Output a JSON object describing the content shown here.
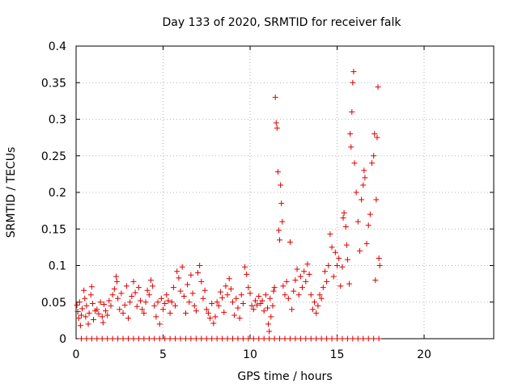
{
  "chart_data": {
    "type": "scatter",
    "title": "Day 133 of 2020, SRMTID for receiver falk",
    "xlabel": "GPS time / hours",
    "ylabel": "SRMTID / TECUs",
    "xlim": [
      0,
      24
    ],
    "ylim": [
      0,
      0.4
    ],
    "x_ticks": [
      0,
      5,
      10,
      15,
      20
    ],
    "x_tick_labels": [
      "0",
      "5",
      "10",
      "15",
      "20"
    ],
    "y_ticks": [
      0,
      0.05,
      0.1,
      0.15,
      0.2,
      0.25,
      0.3,
      0.35,
      0.4
    ],
    "y_tick_labels": [
      "0",
      "0.05",
      "0.1",
      "0.15",
      "0.2",
      "0.25",
      "0.3",
      "0.35",
      "0.4"
    ],
    "grid": true,
    "marker": "+",
    "marker_color": "#dd0000",
    "series": [
      {
        "points": [
          [
            0.05,
            0.046
          ],
          [
            0.1,
            0.037
          ],
          [
            0.15,
            0.028
          ],
          [
            0.2,
            0.05
          ],
          [
            0.25,
            0.018
          ],
          [
            0.3,
            0.032
          ],
          [
            0.35,
            0.041
          ],
          [
            0.45,
            0.066
          ],
          [
            0.5,
            0.055
          ],
          [
            0.55,
            0.03
          ],
          [
            0.6,
            0.045
          ],
          [
            0.7,
            0.02
          ],
          [
            0.75,
            0.035
          ],
          [
            0.85,
            0.06
          ],
          [
            0.9,
            0.071
          ],
          [
            0.95,
            0.048
          ],
          [
            1.0,
            0.026
          ],
          [
            1.1,
            0.038
          ],
          [
            1.2,
            0.04
          ],
          [
            1.3,
            0.034
          ],
          [
            1.4,
            0.05
          ],
          [
            1.5,
            0.03
          ],
          [
            1.55,
            0.022
          ],
          [
            1.6,
            0.047
          ],
          [
            1.7,
            0.038
          ],
          [
            1.8,
            0.032
          ],
          [
            1.9,
            0.052
          ],
          [
            2.0,
            0.045
          ],
          [
            2.1,
            0.06
          ],
          [
            2.2,
            0.068
          ],
          [
            2.3,
            0.085
          ],
          [
            2.35,
            0.078
          ],
          [
            2.4,
            0.055
          ],
          [
            2.5,
            0.04
          ],
          [
            2.6,
            0.062
          ],
          [
            2.7,
            0.035
          ],
          [
            2.8,
            0.046
          ],
          [
            2.9,
            0.072
          ],
          [
            3.0,
            0.028
          ],
          [
            3.1,
            0.05
          ],
          [
            3.2,
            0.058
          ],
          [
            3.3,
            0.078
          ],
          [
            3.4,
            0.063
          ],
          [
            3.5,
            0.044
          ],
          [
            3.6,
            0.07
          ],
          [
            3.7,
            0.052
          ],
          [
            3.8,
            0.04
          ],
          [
            3.9,
            0.035
          ],
          [
            4.0,
            0.05
          ],
          [
            4.1,
            0.066
          ],
          [
            4.2,
            0.06
          ],
          [
            4.3,
            0.08
          ],
          [
            4.4,
            0.072
          ],
          [
            4.5,
            0.045
          ],
          [
            4.6,
            0.03
          ],
          [
            4.7,
            0.05
          ],
          [
            4.8,
            0.02
          ],
          [
            4.9,
            0.055
          ],
          [
            5.0,
            0.04
          ],
          [
            5.1,
            0.048
          ],
          [
            5.2,
            0.06
          ],
          [
            5.3,
            0.052
          ],
          [
            5.4,
            0.035
          ],
          [
            5.5,
            0.05
          ],
          [
            5.6,
            0.07
          ],
          [
            5.7,
            0.045
          ],
          [
            5.8,
            0.092
          ],
          [
            5.9,
            0.083
          ],
          [
            6.0,
            0.065
          ],
          [
            6.1,
            0.098
          ],
          [
            6.2,
            0.058
          ],
          [
            6.3,
            0.035
          ],
          [
            6.4,
            0.074
          ],
          [
            6.5,
            0.05
          ],
          [
            6.6,
            0.087
          ],
          [
            6.7,
            0.062
          ],
          [
            6.8,
            0.045
          ],
          [
            6.9,
            0.038
          ],
          [
            7.0,
            0.09
          ],
          [
            7.1,
            0.1
          ],
          [
            7.2,
            0.078
          ],
          [
            7.3,
            0.055
          ],
          [
            7.4,
            0.066
          ],
          [
            7.5,
            0.04
          ],
          [
            7.6,
            0.035
          ],
          [
            7.7,
            0.028
          ],
          [
            7.8,
            0.048
          ],
          [
            7.9,
            0.021
          ],
          [
            8.0,
            0.03
          ],
          [
            8.1,
            0.05
          ],
          [
            8.2,
            0.045
          ],
          [
            8.3,
            0.064
          ],
          [
            8.4,
            0.056
          ],
          [
            8.5,
            0.036
          ],
          [
            8.6,
            0.072
          ],
          [
            8.7,
            0.06
          ],
          [
            8.8,
            0.082
          ],
          [
            8.9,
            0.068
          ],
          [
            9.0,
            0.05
          ],
          [
            9.1,
            0.032
          ],
          [
            9.2,
            0.055
          ],
          [
            9.3,
            0.042
          ],
          [
            9.4,
            0.028
          ],
          [
            9.5,
            0.06
          ],
          [
            9.6,
            0.048
          ],
          [
            9.7,
            0.098
          ],
          [
            9.8,
            0.088
          ],
          [
            9.9,
            0.07
          ],
          [
            10.0,
            0.062
          ],
          [
            10.1,
            0.045
          ],
          [
            10.2,
            0.04
          ],
          [
            10.3,
            0.052
          ],
          [
            10.4,
            0.046
          ],
          [
            10.5,
            0.058
          ],
          [
            10.6,
            0.048
          ],
          [
            10.7,
            0.052
          ],
          [
            10.8,
            0.038
          ],
          [
            10.9,
            0.06
          ],
          [
            11.0,
            0.042
          ],
          [
            11.05,
            0.02
          ],
          [
            11.1,
            0.01
          ],
          [
            11.15,
            0.055
          ],
          [
            11.2,
            0.03
          ],
          [
            11.3,
            0.045
          ],
          [
            11.35,
            0.065
          ],
          [
            11.4,
            0.07
          ],
          [
            11.45,
            0.33
          ],
          [
            11.5,
            0.295
          ],
          [
            11.55,
            0.288
          ],
          [
            11.6,
            0.228
          ],
          [
            11.65,
            0.148
          ],
          [
            11.7,
            0.135
          ],
          [
            11.75,
            0.21
          ],
          [
            11.8,
            0.185
          ],
          [
            11.85,
            0.16
          ],
          [
            11.9,
            0.072
          ],
          [
            12.0,
            0.06
          ],
          [
            12.1,
            0.078
          ],
          [
            12.2,
            0.055
          ],
          [
            12.3,
            0.132
          ],
          [
            12.4,
            0.04
          ],
          [
            12.5,
            0.065
          ],
          [
            12.6,
            0.08
          ],
          [
            12.7,
            0.095
          ],
          [
            12.8,
            0.06
          ],
          [
            12.9,
            0.085
          ],
          [
            13.0,
            0.07
          ],
          [
            13.1,
            0.092
          ],
          [
            13.2,
            0.078
          ],
          [
            13.3,
            0.102
          ],
          [
            13.4,
            0.088
          ],
          [
            13.5,
            0.06
          ],
          [
            13.6,
            0.04
          ],
          [
            13.7,
            0.05
          ],
          [
            13.8,
            0.035
          ],
          [
            13.9,
            0.045
          ],
          [
            14.0,
            0.06
          ],
          [
            14.1,
            0.055
          ],
          [
            14.2,
            0.07
          ],
          [
            14.3,
            0.092
          ],
          [
            14.4,
            0.078
          ],
          [
            14.5,
            0.1
          ],
          [
            14.6,
            0.143
          ],
          [
            14.7,
            0.125
          ],
          [
            14.8,
            0.085
          ],
          [
            14.9,
            0.118
          ],
          [
            15.0,
            0.1
          ],
          [
            15.1,
            0.11
          ],
          [
            15.2,
            0.072
          ],
          [
            15.3,
            0.098
          ],
          [
            15.35,
            0.165
          ],
          [
            15.4,
            0.172
          ],
          [
            15.5,
            0.153
          ],
          [
            15.55,
            0.128
          ],
          [
            15.6,
            0.108
          ],
          [
            15.7,
            0.075
          ],
          [
            15.75,
            0.28
          ],
          [
            15.8,
            0.262
          ],
          [
            15.85,
            0.31
          ],
          [
            15.9,
            0.35
          ],
          [
            15.95,
            0.365
          ],
          [
            16.0,
            0.24
          ],
          [
            16.1,
            0.2
          ],
          [
            16.2,
            0.16
          ],
          [
            16.3,
            0.12
          ],
          [
            16.4,
            0.19
          ],
          [
            16.5,
            0.21
          ],
          [
            16.55,
            0.23
          ],
          [
            16.6,
            0.22
          ],
          [
            16.7,
            0.13
          ],
          [
            16.8,
            0.155
          ],
          [
            16.9,
            0.17
          ],
          [
            17.0,
            0.24
          ],
          [
            17.1,
            0.25
          ],
          [
            17.15,
            0.28
          ],
          [
            17.2,
            0.08
          ],
          [
            17.25,
            0.19
          ],
          [
            17.3,
            0.275
          ],
          [
            17.35,
            0.344
          ],
          [
            17.4,
            0.11
          ],
          [
            17.45,
            0.1
          ],
          [
            0.3,
            0.0
          ],
          [
            0.6,
            0.0
          ],
          [
            0.9,
            0.0
          ],
          [
            1.2,
            0.0
          ],
          [
            1.5,
            0.0
          ],
          [
            1.8,
            0.0
          ],
          [
            2.1,
            0.0
          ],
          [
            2.4,
            0.0
          ],
          [
            2.7,
            0.0
          ],
          [
            3.0,
            0.0
          ],
          [
            3.3,
            0.0
          ],
          [
            3.6,
            0.0
          ],
          [
            3.9,
            0.0
          ],
          [
            4.2,
            0.0
          ],
          [
            4.5,
            0.0
          ],
          [
            4.8,
            0.0
          ],
          [
            5.1,
            0.0
          ],
          [
            5.4,
            0.0
          ],
          [
            5.7,
            0.0
          ],
          [
            6.0,
            0.0
          ],
          [
            6.3,
            0.0
          ],
          [
            6.6,
            0.0
          ],
          [
            6.9,
            0.0
          ],
          [
            7.2,
            0.0
          ],
          [
            7.5,
            0.0
          ],
          [
            7.8,
            0.0
          ],
          [
            8.1,
            0.0
          ],
          [
            8.4,
            0.0
          ],
          [
            8.7,
            0.0
          ],
          [
            9.0,
            0.0
          ],
          [
            9.3,
            0.0
          ],
          [
            9.6,
            0.0
          ],
          [
            9.9,
            0.0
          ],
          [
            10.2,
            0.0
          ],
          [
            10.5,
            0.0
          ],
          [
            10.8,
            0.0
          ],
          [
            11.1,
            0.0
          ],
          [
            11.4,
            0.0
          ],
          [
            11.7,
            0.0
          ],
          [
            12.0,
            0.0
          ],
          [
            12.3,
            0.0
          ],
          [
            12.6,
            0.0
          ],
          [
            12.9,
            0.0
          ],
          [
            13.2,
            0.0
          ],
          [
            13.5,
            0.0
          ],
          [
            13.8,
            0.0
          ],
          [
            14.1,
            0.0
          ],
          [
            14.4,
            0.0
          ],
          [
            14.7,
            0.0
          ],
          [
            15.0,
            0.0
          ],
          [
            15.3,
            0.0
          ],
          [
            15.6,
            0.0
          ],
          [
            15.9,
            0.0
          ],
          [
            16.2,
            0.0
          ],
          [
            16.5,
            0.0
          ],
          [
            16.8,
            0.0
          ],
          [
            17.1,
            0.0
          ],
          [
            17.4,
            0.0
          ]
        ]
      }
    ]
  }
}
